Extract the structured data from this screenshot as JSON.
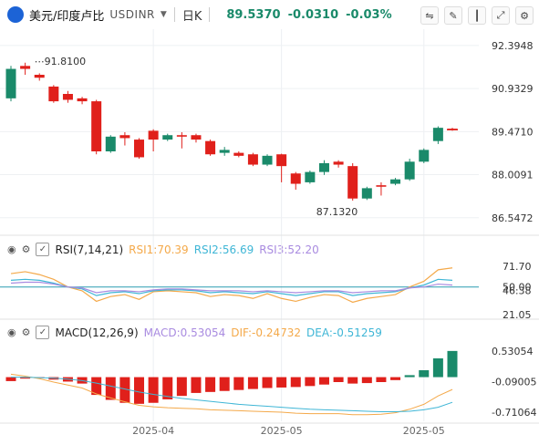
{
  "toolbar": {
    "pair": "美元/印度卢比",
    "ticker": "USDINR",
    "timeframe": "日K",
    "price": "89.5370",
    "change": "-0.0310",
    "change_pct": "-0.03%"
  },
  "rsi_header": {
    "label": "RSI(7,14,21)",
    "rsi1": "RSI1:70.39",
    "rsi2": "RSI2:56.69",
    "rsi3": "RSI3:52.20"
  },
  "macd_header": {
    "label": "MACD(12,26,9)",
    "macd": "MACD:0.53054",
    "dif": "DIF:-0.24732",
    "dea": "DEA:-0.51259"
  },
  "colors": {
    "up": "#1a8a6a",
    "down": "#e0201b",
    "rsi1": "#f4a94a",
    "rsi2": "#3fb6d6",
    "rsi3": "#a98be0",
    "ref": "#2a9bb0"
  },
  "chart_data": [
    {
      "type": "candlestick",
      "title": "USDINR 日K",
      "ylim": [
        86.2,
        92.7
      ],
      "yticks": [
        "92.3948",
        "90.9329",
        "89.4710",
        "88.0091",
        "86.5472"
      ],
      "xticks": [
        "2025-04",
        "2025-05",
        "2025-05"
      ],
      "annotations": {
        "high": "91.8100",
        "low": "87.1320"
      },
      "candles": [
        {
          "o": 90.6,
          "c": 91.6,
          "h": 91.7,
          "l": 90.5
        },
        {
          "o": 91.7,
          "c": 91.6,
          "h": 91.81,
          "l": 91.4
        },
        {
          "o": 91.4,
          "c": 91.3,
          "h": 91.45,
          "l": 91.2
        },
        {
          "o": 91.0,
          "c": 90.5,
          "h": 91.05,
          "l": 90.45
        },
        {
          "o": 90.75,
          "c": 90.55,
          "h": 90.85,
          "l": 90.45
        },
        {
          "o": 90.6,
          "c": 90.5,
          "h": 90.65,
          "l": 90.4
        },
        {
          "o": 90.5,
          "c": 88.8,
          "h": 90.55,
          "l": 88.7
        },
        {
          "o": 88.8,
          "c": 89.3,
          "h": 89.35,
          "l": 88.75
        },
        {
          "o": 89.35,
          "c": 89.25,
          "h": 89.45,
          "l": 89.0
        },
        {
          "o": 89.2,
          "c": 88.6,
          "h": 89.25,
          "l": 88.55
        },
        {
          "o": 89.5,
          "c": 89.2,
          "h": 89.55,
          "l": 88.8
        },
        {
          "o": 89.2,
          "c": 89.35,
          "h": 89.4,
          "l": 89.15
        },
        {
          "o": 89.35,
          "c": 89.3,
          "h": 89.45,
          "l": 88.9
        },
        {
          "o": 89.35,
          "c": 89.2,
          "h": 89.4,
          "l": 89.1
        },
        {
          "o": 89.15,
          "c": 88.7,
          "h": 89.2,
          "l": 88.65
        },
        {
          "o": 88.75,
          "c": 88.85,
          "h": 88.95,
          "l": 88.65
        },
        {
          "o": 88.75,
          "c": 88.65,
          "h": 88.8,
          "l": 88.6
        },
        {
          "o": 88.7,
          "c": 88.35,
          "h": 88.75,
          "l": 88.3
        },
        {
          "o": 88.35,
          "c": 88.65,
          "h": 88.7,
          "l": 88.3
        },
        {
          "o": 88.7,
          "c": 88.3,
          "h": 88.72,
          "l": 87.75
        },
        {
          "o": 88.05,
          "c": 87.7,
          "h": 88.1,
          "l": 87.5
        },
        {
          "o": 87.75,
          "c": 88.1,
          "h": 88.15,
          "l": 87.7
        },
        {
          "o": 88.1,
          "c": 88.4,
          "h": 88.5,
          "l": 88.0
        },
        {
          "o": 88.45,
          "c": 88.35,
          "h": 88.5,
          "l": 88.25
        },
        {
          "o": 88.3,
          "c": 87.2,
          "h": 88.4,
          "l": 87.13
        },
        {
          "o": 87.2,
          "c": 87.55,
          "h": 87.6,
          "l": 87.15
        },
        {
          "o": 87.65,
          "c": 87.6,
          "h": 87.75,
          "l": 87.3
        },
        {
          "o": 87.7,
          "c": 87.85,
          "h": 87.9,
          "l": 87.65
        },
        {
          "o": 87.85,
          "c": 88.45,
          "h": 88.55,
          "l": 87.8
        },
        {
          "o": 88.45,
          "c": 88.85,
          "h": 88.9,
          "l": 88.4
        },
        {
          "o": 89.15,
          "c": 89.6,
          "h": 89.65,
          "l": 89.05
        },
        {
          "o": 89.57,
          "c": 89.54,
          "h": 89.6,
          "l": 89.5
        }
      ]
    },
    {
      "type": "line",
      "title": "RSI(7,14,21)",
      "ylim": [
        21.05,
        71.7
      ],
      "yticks": [
        "71.70",
        "50.00",
        "46.38",
        "21.05"
      ],
      "reference": 50.0,
      "series": [
        {
          "name": "RSI1",
          "values": [
            64,
            66,
            63,
            58,
            50,
            46,
            35,
            40,
            42,
            37,
            45,
            46,
            45,
            44,
            40,
            42,
            41,
            38,
            43,
            38,
            35,
            39,
            42,
            41,
            34,
            38,
            40,
            42,
            50,
            56,
            68,
            70
          ]
        },
        {
          "name": "RSI2",
          "values": [
            57,
            58,
            57,
            54,
            50,
            48,
            41,
            44,
            45,
            43,
            46,
            47,
            47,
            46,
            44,
            45,
            44,
            43,
            45,
            43,
            41,
            43,
            45,
            45,
            41,
            43,
            44,
            45,
            49,
            52,
            58,
            57
          ]
        },
        {
          "name": "RSI3",
          "values": [
            54,
            55,
            55,
            53,
            50,
            49,
            44,
            46,
            46,
            45,
            47,
            48,
            48,
            47,
            46,
            46,
            46,
            45,
            46,
            45,
            44,
            45,
            46,
            46,
            44,
            45,
            46,
            46,
            49,
            50,
            53,
            52
          ]
        }
      ]
    },
    {
      "type": "bar",
      "title": "MACD(12,26,9)",
      "ylim": [
        -0.82,
        0.62
      ],
      "yticks": [
        "0.53054",
        "-0.09005",
        "-0.71064"
      ],
      "series": [
        {
          "name": "MACD",
          "values": [
            -0.08,
            -0.03,
            -0.02,
            -0.05,
            -0.09,
            -0.13,
            -0.36,
            -0.46,
            -0.52,
            -0.54,
            -0.52,
            -0.45,
            -0.38,
            -0.32,
            -0.3,
            -0.28,
            -0.26,
            -0.24,
            -0.22,
            -0.21,
            -0.2,
            -0.18,
            -0.15,
            -0.1,
            -0.13,
            -0.12,
            -0.1,
            -0.06,
            0.04,
            0.14,
            0.38,
            0.53
          ]
        },
        {
          "name": "DIF",
          "values": [
            0.06,
            0.02,
            -0.03,
            -0.1,
            -0.16,
            -0.22,
            -0.34,
            -0.42,
            -0.5,
            -0.57,
            -0.6,
            -0.62,
            -0.63,
            -0.64,
            -0.66,
            -0.67,
            -0.68,
            -0.69,
            -0.7,
            -0.71,
            -0.73,
            -0.74,
            -0.74,
            -0.74,
            -0.76,
            -0.76,
            -0.75,
            -0.72,
            -0.65,
            -0.55,
            -0.38,
            -0.25
          ]
        },
        {
          "name": "DEA",
          "values": [
            0.0,
            0.0,
            -0.01,
            -0.02,
            -0.04,
            -0.07,
            -0.12,
            -0.18,
            -0.24,
            -0.3,
            -0.35,
            -0.39,
            -0.43,
            -0.46,
            -0.49,
            -0.52,
            -0.55,
            -0.57,
            -0.59,
            -0.61,
            -0.63,
            -0.65,
            -0.66,
            -0.67,
            -0.68,
            -0.69,
            -0.7,
            -0.7,
            -0.69,
            -0.66,
            -0.61,
            -0.51
          ]
        }
      ]
    }
  ]
}
